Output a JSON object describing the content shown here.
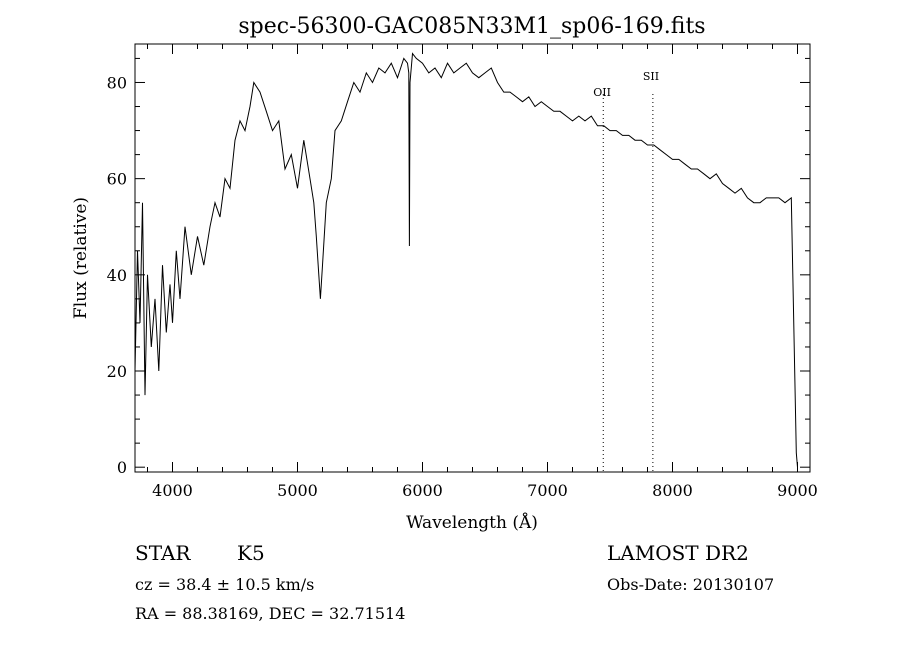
{
  "chart_data": {
    "type": "line",
    "title": "spec-56300-GAC085N33M1_sp06-169.fits",
    "xlabel": "Wavelength (Å)",
    "ylabel": "Flux (relative)",
    "xlim": [
      3700,
      9100
    ],
    "ylim": [
      -1,
      88
    ],
    "xticks": [
      4000,
      5000,
      6000,
      7000,
      8000,
      9000
    ],
    "yticks": [
      0,
      20,
      40,
      60,
      80
    ],
    "grid": false,
    "line_color": "#000000",
    "series": [
      {
        "x": [
          3700,
          3720,
          3740,
          3760,
          3780,
          3800,
          3830,
          3860,
          3890,
          3920,
          3950,
          3980,
          4000,
          4030,
          4060,
          4100,
          4150,
          4200,
          4250,
          4300,
          4340,
          4380,
          4420,
          4460,
          4500,
          4540,
          4580,
          4620,
          4650,
          4700,
          4750,
          4800,
          4850,
          4900,
          4950,
          5000,
          5050,
          5100,
          5130,
          5150,
          5170,
          5183,
          5200,
          5230,
          5270,
          5300,
          5350,
          5400,
          5450,
          5500,
          5550,
          5600,
          5650,
          5700,
          5750,
          5800,
          5850,
          5880,
          5890,
          5895,
          5900,
          5920,
          5950,
          6000,
          6050,
          6100,
          6150,
          6200,
          6250,
          6300,
          6350,
          6400,
          6450,
          6500,
          6550,
          6600,
          6650,
          6700,
          6750,
          6800,
          6850,
          6900,
          6950,
          7000,
          7050,
          7100,
          7150,
          7200,
          7250,
          7300,
          7350,
          7400,
          7450,
          7500,
          7550,
          7600,
          7650,
          7700,
          7750,
          7800,
          7850,
          7900,
          7950,
          8000,
          8050,
          8100,
          8150,
          8200,
          8250,
          8300,
          8350,
          8400,
          8450,
          8500,
          8550,
          8600,
          8650,
          8700,
          8750,
          8800,
          8850,
          8900,
          8950,
          8990,
          9000
        ],
        "y": [
          20,
          45,
          30,
          55,
          15,
          40,
          25,
          35,
          20,
          42,
          28,
          38,
          30,
          45,
          35,
          50,
          40,
          48,
          42,
          50,
          55,
          52,
          60,
          58,
          68,
          72,
          70,
          75,
          80,
          78,
          74,
          70,
          72,
          62,
          65,
          58,
          68,
          60,
          55,
          48,
          40,
          35,
          42,
          55,
          60,
          70,
          72,
          76,
          80,
          78,
          82,
          80,
          83,
          82,
          84,
          81,
          85,
          84,
          82,
          46,
          80,
          86,
          85,
          84,
          82,
          83,
          81,
          84,
          82,
          83,
          84,
          82,
          81,
          82,
          83,
          80,
          78,
          78,
          77,
          76,
          77,
          75,
          76,
          75,
          74,
          74,
          73,
          72,
          73,
          72,
          73,
          71,
          71,
          70,
          70,
          69,
          69,
          68,
          68,
          67,
          67,
          66,
          65,
          64,
          64,
          63,
          62,
          62,
          61,
          60,
          61,
          59,
          58,
          57,
          58,
          56,
          55,
          55,
          56,
          56,
          56,
          55,
          56,
          3,
          0
        ]
      }
    ],
    "line_markers": [
      {
        "label": "OII",
        "x": 7446
      },
      {
        "label": "SII",
        "x": 7843
      }
    ]
  },
  "footer": {
    "left_type": "STAR",
    "left_class": "K5",
    "cz": "cz = 38.4 ± 10.5 km/s",
    "coords": "RA =  88.38169, DEC =  32.71514",
    "survey": "LAMOST DR2",
    "obsdate": "Obs-Date: 20130107"
  }
}
